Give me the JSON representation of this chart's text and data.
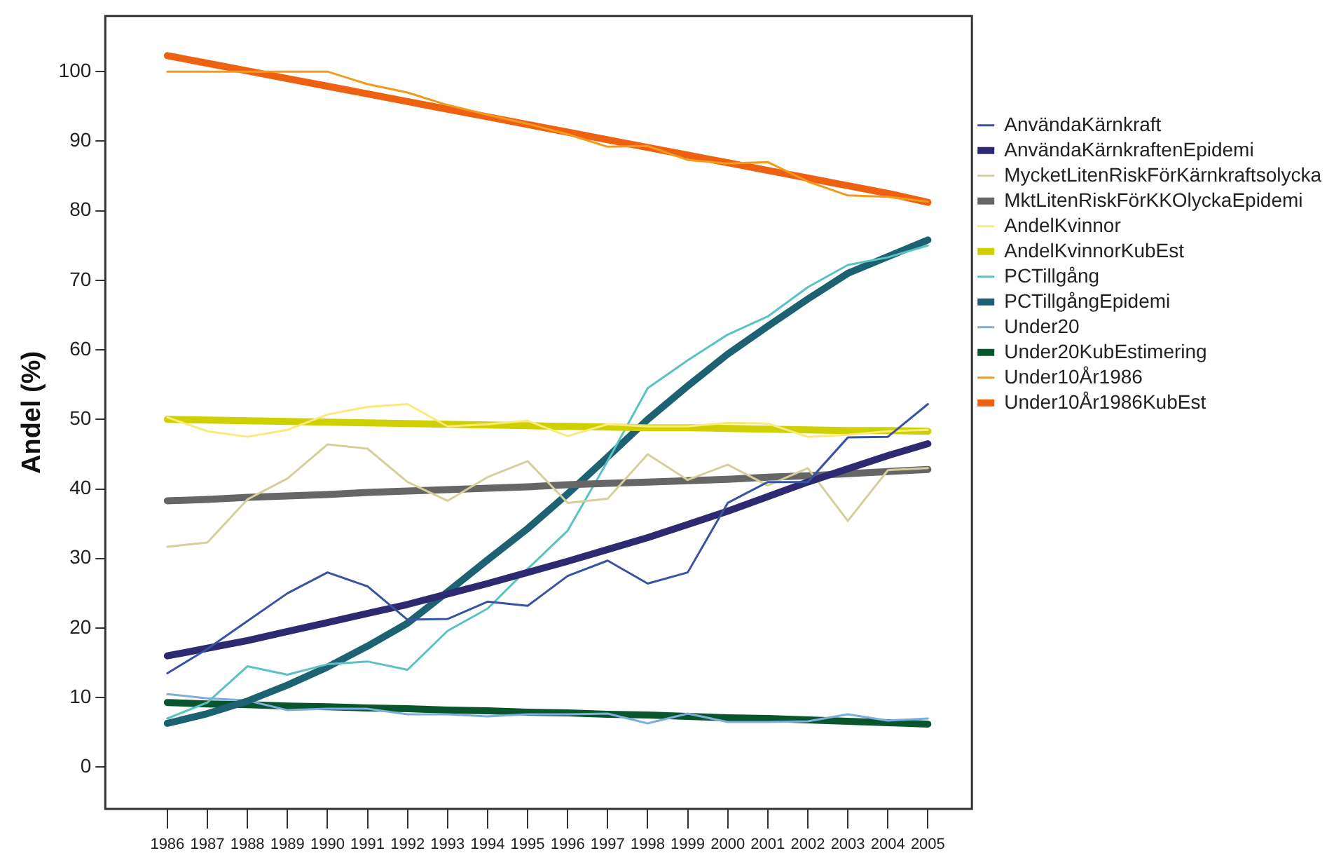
{
  "chart_data": {
    "type": "line",
    "ylabel": "Andel (%)",
    "x": [
      1986,
      1987,
      1988,
      1989,
      1990,
      1991,
      1992,
      1993,
      1994,
      1995,
      1996,
      1997,
      1998,
      1999,
      2000,
      2001,
      2002,
      2003,
      2004,
      2005
    ],
    "xlim": [
      1984.45,
      2006.1
    ],
    "xticks": [
      1986,
      1987,
      1988,
      1989,
      1990,
      1991,
      1992,
      1993,
      1994,
      1995,
      1996,
      1997,
      1998,
      1999,
      2000,
      2001,
      2002,
      2003,
      2004,
      2005
    ],
    "ylim": [
      -6,
      108
    ],
    "yticks": [
      0,
      10,
      20,
      30,
      40,
      50,
      60,
      70,
      80,
      90,
      100
    ],
    "grid": false,
    "legend": "right",
    "marker": "none",
    "line_style": "solid",
    "series": [
      {
        "name": "AnvändaKärnkraft",
        "color": "#3953a4",
        "values": [
          13.5,
          17,
          21,
          25,
          28,
          26,
          21.2,
          21.3,
          23.8,
          23.2,
          27.5,
          29.7,
          26.4,
          28,
          38,
          41,
          41,
          47.4,
          47.5,
          52.2
        ]
      },
      {
        "name": "AnvändaKärnkraftenEpidemi",
        "color": "#2e2a72",
        "values": [
          16,
          17.1,
          18.2,
          19.5,
          20.8,
          22.1,
          23.4,
          24.9,
          26.4,
          28,
          29.6,
          31.3,
          33,
          34.9,
          36.8,
          38.9,
          41,
          42.9,
          44.8,
          46.5
        ]
      },
      {
        "name": "MycketLitenRiskFörKärnkraftsolycka",
        "color": "#d6cf9a",
        "values": [
          31.7,
          32.3,
          38.5,
          41.5,
          46.4,
          45.8,
          41,
          38.3,
          41.7,
          44,
          38,
          38.6,
          45,
          41.3,
          43.5,
          40.5,
          43,
          35.4,
          42.7,
          43
        ]
      },
      {
        "name": "MktLitenRiskFörKKOlyckaEpidemi",
        "color": "#666666",
        "values": [
          38.3,
          38.5,
          38.8,
          39,
          39.2,
          39.5,
          39.7,
          39.9,
          40.1,
          40.3,
          40.6,
          40.8,
          41,
          41.2,
          41.4,
          41.7,
          41.9,
          42.2,
          42.5,
          42.8
        ]
      },
      {
        "name": "AndelKvinnor",
        "color": "#fbe979",
        "values": [
          50.3,
          48.3,
          47.5,
          48.5,
          50.7,
          51.8,
          52.2,
          49,
          49.3,
          49.8,
          47.6,
          49.3,
          49,
          49,
          49.5,
          49.4,
          47.5,
          47.8,
          48.3,
          48.5
        ]
      },
      {
        "name": "AndelKvinnorKubEst",
        "color": "#cfd000",
        "values": [
          50,
          49.9,
          49.8,
          49.7,
          49.6,
          49.5,
          49.4,
          49.3,
          49.2,
          49.1,
          49,
          48.9,
          48.8,
          48.8,
          48.7,
          48.6,
          48.5,
          48.4,
          48.4,
          48.3
        ]
      },
      {
        "name": "PCTillgång",
        "color": "#5bc2c2",
        "values": [
          7,
          9.3,
          14.5,
          13.3,
          14.8,
          15.2,
          14,
          19.6,
          22.8,
          28.5,
          34,
          44,
          54.5,
          58.5,
          62.2,
          64.8,
          69,
          72.2,
          73.3,
          75
        ]
      },
      {
        "name": "PCTillgångEpidemi",
        "color": "#1d6272",
        "values": [
          6.3,
          7.7,
          9.5,
          11.8,
          14.4,
          17.4,
          20.7,
          25.2,
          29.8,
          34.3,
          39.3,
          44.6,
          50,
          54.8,
          59.4,
          63.4,
          67.3,
          71,
          73.4,
          75.8
        ]
      },
      {
        "name": "Under20",
        "color": "#7eaedb",
        "values": [
          10.5,
          9.9,
          9.6,
          8.2,
          8.4,
          8.4,
          7.6,
          7.6,
          7.3,
          7.6,
          7.6,
          7.7,
          6.3,
          7.7,
          6.5,
          6.5,
          6.6,
          7.6,
          6.7,
          7
        ]
      },
      {
        "name": "Under20KubEstimering",
        "color": "#08552e",
        "values": [
          9.3,
          9.1,
          9,
          8.8,
          8.7,
          8.5,
          8.4,
          8.2,
          8.1,
          7.9,
          7.8,
          7.6,
          7.5,
          7.3,
          7.1,
          7,
          6.8,
          6.6,
          6.4,
          6.2
        ]
      },
      {
        "name": "Under10År1986",
        "color": "#f39a1c",
        "values": [
          100,
          100,
          100,
          100,
          100,
          98.2,
          97,
          95.2,
          93.8,
          92.5,
          91,
          89.2,
          89.3,
          87.3,
          86.8,
          87,
          84.2,
          82.2,
          82,
          81.3
        ]
      },
      {
        "name": "Under10År1986KubEst",
        "color": "#ee6111",
        "values": [
          102.3,
          101.2,
          100.1,
          99,
          97.9,
          96.8,
          95.7,
          94.6,
          93.5,
          92.4,
          91.3,
          90.2,
          89.1,
          88,
          86.9,
          85.8,
          84.7,
          83.6,
          82.5,
          81.2
        ]
      }
    ]
  }
}
